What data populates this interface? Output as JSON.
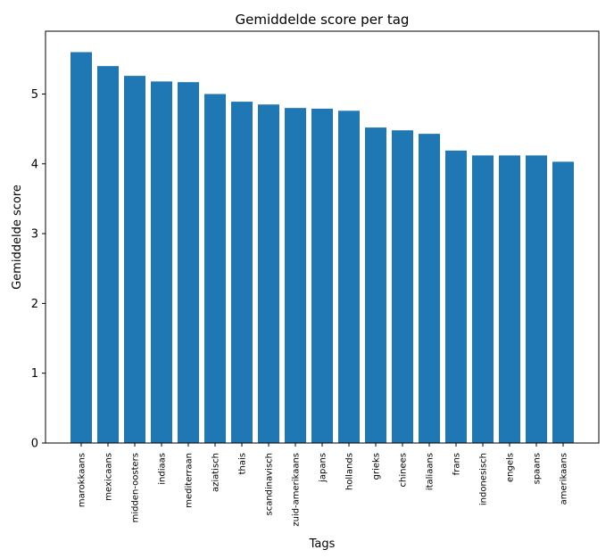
{
  "chart_data": {
    "type": "bar",
    "title": "Gemiddelde score per tag",
    "xlabel": "Tags",
    "ylabel": "Gemiddelde score",
    "categories": [
      "marokkaans",
      "mexicaans",
      "midden-oosters",
      "indiaas",
      "mediterraan",
      "aziatisch",
      "thais",
      "scandinavisch",
      "zuid-amerikaans",
      "japans",
      "hollands",
      "grieks",
      "chinees",
      "italiaans",
      "frans",
      "indonesisch",
      "engels",
      "spaans",
      "amerikaans"
    ],
    "values": [
      5.6,
      5.4,
      5.26,
      5.18,
      5.17,
      5.0,
      4.89,
      4.85,
      4.8,
      4.79,
      4.76,
      4.52,
      4.48,
      4.43,
      4.19,
      4.12,
      4.12,
      4.12,
      4.03
    ],
    "ylim": [
      0,
      5.9
    ],
    "yticks": [
      "0",
      "1",
      "2",
      "3",
      "4",
      "5"
    ],
    "grid": false,
    "bar_color": "#1f77b4"
  }
}
